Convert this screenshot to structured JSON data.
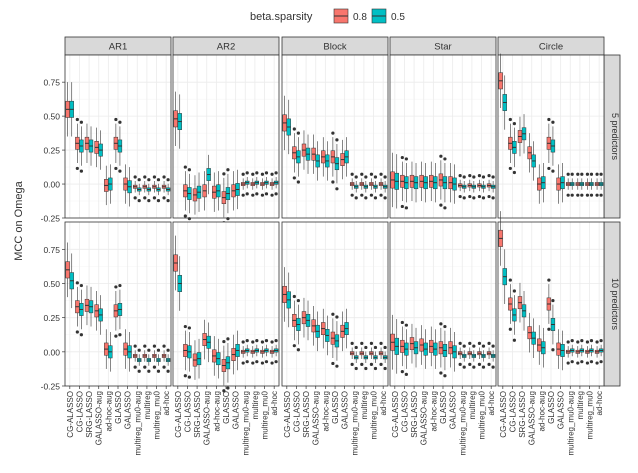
{
  "chart_data": {
    "type": "boxplot",
    "legend": {
      "title": "beta.sparsity",
      "position": "top",
      "entries": [
        {
          "label": "0.8",
          "color": "#F8766D"
        },
        {
          "label": "0.5",
          "color": "#00BFC4"
        }
      ]
    },
    "ylabel": "MCC on Omega",
    "ylim": [
      -0.25,
      0.95
    ],
    "yticks": [
      "-0.25",
      "0.00",
      "0.25",
      "0.50",
      "0.75"
    ],
    "grid": true,
    "columns": [
      "AR1",
      "AR2",
      "Block",
      "Star",
      "Circle"
    ],
    "rows": [
      "5 predictors",
      "10 predictors"
    ],
    "methods": [
      "CG-ALASSO",
      "CG-LASSO",
      "SRG-LASSO",
      "GALASSO-aug",
      "ad-hoc-aug",
      "GLASSO",
      "GALASSO",
      "multireg_mu0-aug",
      "multireg",
      "multireg_mu0",
      "ad-hoc"
    ],
    "method_labels": [
      "CG-ALASSO",
      "CG-LASSO",
      "SRG-LASSO",
      "GALASSO-aug",
      "ad-hoc-aug",
      "GLASSO",
      "GALASSO",
      "multireg_mu0-aug",
      "multireg",
      "multireg_mu0",
      "ad-hoc"
    ],
    "series_colors": {
      "0.8": "#F8766D",
      "0.5": "#00BFC4"
    },
    "medians": {
      "5 predictors": {
        "AR1": {
          "0.8": [
            0.55,
            0.3,
            0.3,
            0.27,
            -0.01,
            0.3,
            0.0,
            -0.02,
            -0.02,
            -0.02,
            -0.02
          ],
          "0.5": [
            0.55,
            0.28,
            0.28,
            0.25,
            0.0,
            0.28,
            -0.02,
            -0.04,
            -0.04,
            -0.04,
            -0.04
          ]
        },
        "AR2": {
          "0.8": [
            0.48,
            -0.05,
            -0.08,
            -0.05,
            -0.06,
            -0.1,
            -0.05,
            0.0,
            0.0,
            0.0,
            0.0
          ],
          "0.5": [
            0.46,
            -0.07,
            -0.06,
            0.07,
            -0.05,
            -0.07,
            -0.04,
            0.01,
            0.01,
            0.01,
            0.01
          ]
        },
        "Block": {
          "0.8": [
            0.45,
            0.23,
            0.25,
            0.22,
            0.2,
            0.2,
            0.18,
            0.0,
            0.0,
            0.0,
            0.0
          ],
          "0.5": [
            0.42,
            0.2,
            0.22,
            0.17,
            0.17,
            0.15,
            0.2,
            -0.02,
            -0.02,
            -0.02,
            -0.02
          ]
        },
        "Star": {
          "0.8": [
            0.03,
            0.02,
            0.02,
            0.02,
            0.02,
            0.03,
            0.01,
            -0.01,
            -0.01,
            -0.01,
            -0.01
          ],
          "0.5": [
            0.02,
            0.01,
            0.01,
            0.01,
            0.01,
            0.01,
            0.0,
            -0.02,
            -0.02,
            -0.02,
            -0.02
          ]
        },
        "Circle": {
          "0.8": [
            0.76,
            0.3,
            0.35,
            0.23,
            0.0,
            0.3,
            0.0,
            0.0,
            0.0,
            0.0,
            0.0
          ],
          "0.5": [
            0.6,
            0.27,
            0.37,
            0.17,
            0.01,
            0.28,
            0.01,
            0.0,
            0.0,
            0.0,
            0.0
          ]
        }
      },
      "10 predictors": {
        "AR1": {
          "0.8": [
            0.6,
            0.33,
            0.34,
            0.3,
            0.02,
            0.3,
            0.02,
            -0.03,
            -0.03,
            -0.03,
            -0.03
          ],
          "0.5": [
            0.52,
            0.31,
            0.33,
            0.27,
            0.0,
            0.31,
            0.0,
            -0.06,
            -0.06,
            -0.06,
            -0.06
          ]
        },
        "AR2": {
          "0.8": [
            0.65,
            0.01,
            -0.06,
            0.09,
            -0.03,
            -0.1,
            -0.02,
            0.0,
            0.0,
            0.0,
            0.0
          ],
          "0.5": [
            0.5,
            0.0,
            -0.05,
            0.07,
            -0.05,
            -0.08,
            0.01,
            0.01,
            0.01,
            0.01,
            0.01
          ]
        },
        "Block": {
          "0.8": [
            0.42,
            0.23,
            0.25,
            0.19,
            0.17,
            0.1,
            0.15,
            -0.01,
            -0.01,
            -0.01,
            -0.01
          ],
          "0.5": [
            0.38,
            0.2,
            0.23,
            0.15,
            0.12,
            0.08,
            0.17,
            -0.04,
            -0.04,
            -0.04,
            -0.04
          ]
        },
        "Star": {
          "0.8": [
            0.07,
            0.04,
            0.06,
            0.05,
            0.04,
            0.03,
            0.03,
            -0.01,
            -0.01,
            -0.01,
            -0.01
          ],
          "0.5": [
            0.04,
            0.02,
            0.03,
            0.02,
            0.02,
            0.01,
            0.0,
            -0.03,
            -0.03,
            -0.03,
            -0.03
          ]
        },
        "Circle": {
          "0.8": [
            0.83,
            0.35,
            0.36,
            0.14,
            0.05,
            0.35,
            0.02,
            0.0,
            0.0,
            0.0,
            0.0
          ],
          "0.5": [
            0.55,
            0.27,
            0.3,
            0.1,
            0.03,
            0.2,
            0.01,
            0.01,
            0.01,
            0.01,
            0.01
          ]
        }
      }
    }
  }
}
